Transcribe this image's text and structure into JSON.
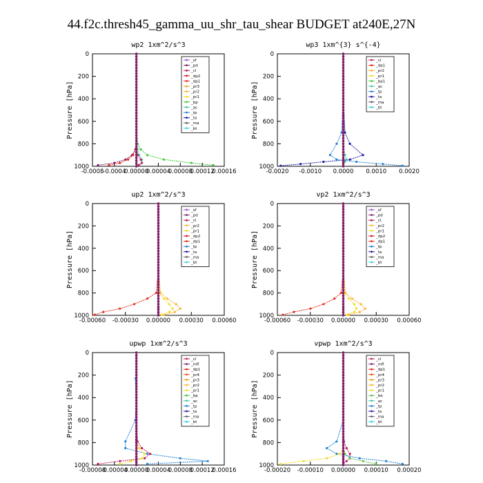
{
  "figure": {
    "title": "44.f2c.thresh45_gamma_uu_shr_tau_shear  BUDGET at240E,27N"
  },
  "colors": {
    "sf": "#9a4fd8",
    "pd": "#7a1f6a",
    "cl": "#c01a5a",
    "dp2": "#d01020",
    "dp1": "#e02a1a",
    "pr3": "#f0a010",
    "pr2": "#ffb030",
    "pr1": "#f2dc20",
    "bp": "#3cc83c",
    "ac": "#38c8a0",
    "tp": "#2080d0",
    "ta": "#1a1aa0",
    "ma": "#606060",
    "bt": "#30d0e0",
    "mfl": "#7a1f6a",
    "pr4": "#e05010",
    "bp1": "#3cc83c",
    "bp2": "#3cc83c",
    "be": "#5cc050"
  },
  "chart_data": [
    {
      "type": "line",
      "title": "wp2   1xm^2/s^3",
      "ylabel": "Pressure  [hPa]",
      "xlim": [
        -0.0008,
        0.0016
      ],
      "ylim": [
        1000,
        0
      ],
      "xticks": [
        "-0.0008",
        "-0.0004",
        "0.00000",
        "0.00004",
        "0.00008",
        "0.00012",
        "0.00016"
      ],
      "yticks": [
        "0",
        "200",
        "400",
        "600",
        "800",
        "1000"
      ],
      "legend": [
        "_sf",
        "_pd",
        "_cl",
        "_dp2",
        "_dp1",
        "_pr3",
        "_pr2",
        "_pr1",
        "_bp",
        "_ac",
        "_tp",
        "_ta",
        "_ma",
        "_bt"
      ],
      "series": [
        {
          "name": "_bp",
          "color": "bp",
          "x": [
            0,
            0,
            0,
            0,
            2e-05,
            8e-05,
            0.0002,
            0.0005,
            0.001,
            0.0014
          ],
          "y": [
            0,
            200,
            400,
            600,
            800,
            850,
            900,
            940,
            970,
            990
          ]
        },
        {
          "name": "_pd",
          "color": "pd",
          "x": [
            0,
            0,
            0,
            0,
            0,
            -2e-05,
            -8e-05,
            -0.0002,
            -0.0004,
            -0.0007
          ],
          "y": [
            0,
            200,
            400,
            600,
            800,
            850,
            900,
            940,
            970,
            990
          ]
        },
        {
          "name": "_dp1",
          "color": "dp1",
          "x": [
            0,
            0,
            0,
            0,
            0,
            -2e-05,
            -6e-05,
            -0.00015,
            -0.0003,
            -0.0005
          ],
          "y": [
            0,
            200,
            400,
            600,
            800,
            850,
            900,
            940,
            970,
            990
          ]
        },
        {
          "name": "_ac",
          "color": "ac",
          "x": [
            0,
            0,
            0,
            0,
            0,
            2e-05,
            5e-05,
            0.0001,
            0.0001,
            5e-05
          ],
          "y": [
            0,
            200,
            400,
            600,
            800,
            850,
            900,
            940,
            970,
            990
          ]
        },
        {
          "name": "_cl",
          "color": "cl",
          "x": [
            0,
            0,
            0,
            0,
            0,
            0,
            2e-05,
            8e-05,
            0.0001,
            4e-05
          ],
          "y": [
            0,
            200,
            400,
            600,
            800,
            850,
            900,
            940,
            970,
            990
          ]
        }
      ]
    },
    {
      "type": "line",
      "title": "wp3   1xm^{3} s^{-4}",
      "ylabel": "Pressure  [hPa]",
      "xlim": [
        -0.002,
        0.002
      ],
      "ylim": [
        1000,
        0
      ],
      "xticks": [
        "-0.0020",
        "-0.0010",
        "0.0000",
        "0.0010",
        "0.0020"
      ],
      "yticks": [
        "0",
        "200",
        "400",
        "600",
        "800",
        "1000"
      ],
      "legend": [
        "_cl",
        "_dp1",
        "_pr2",
        "_pr1",
        "_bp1",
        "_ac",
        "_tp",
        "_ta",
        "_ma",
        "_bt"
      ],
      "series": [
        {
          "name": "_ta",
          "color": "ta",
          "x": [
            0,
            0,
            0,
            5e-05,
            0.0002,
            0.0006,
            0.0002,
            -0.0006,
            -0.0013,
            -0.0019
          ],
          "y": [
            0,
            200,
            400,
            700,
            800,
            900,
            940,
            960,
            980,
            995
          ]
        },
        {
          "name": "_tp",
          "color": "tp",
          "x": [
            0,
            0,
            0,
            -5e-05,
            -0.0002,
            -0.0004,
            -0.0002,
            0.0004,
            0.0012,
            0.0018
          ],
          "y": [
            0,
            200,
            400,
            700,
            800,
            900,
            940,
            960,
            980,
            995
          ]
        },
        {
          "name": "_ac",
          "color": "ac",
          "x": [
            0,
            0,
            0,
            0,
            0,
            5e-05,
            0.0001,
            5e-05,
            0,
            0
          ],
          "y": [
            0,
            200,
            400,
            700,
            800,
            900,
            940,
            960,
            980,
            995
          ]
        },
        {
          "name": "_cl",
          "color": "cl",
          "x": [
            0,
            0,
            0,
            0,
            0,
            0,
            0,
            0,
            0,
            0
          ],
          "y": [
            0,
            200,
            400,
            700,
            800,
            900,
            940,
            960,
            980,
            995
          ]
        }
      ]
    },
    {
      "type": "line",
      "title": "up2   1xm^2/s^3",
      "ylabel": "Pressure  [hPa]",
      "xlim": [
        -0.0006,
        0.0006
      ],
      "ylim": [
        1000,
        0
      ],
      "xticks": [
        "-0.00060",
        "-0.00030",
        "0.00000",
        "0.00030",
        "0.00060"
      ],
      "yticks": [
        "0",
        "200",
        "400",
        "600",
        "800",
        "1000"
      ],
      "legend": [
        "_sf",
        "_pd",
        "_cl",
        "_pr2",
        "_pr1",
        "_dp2",
        "_dp1",
        "_tp",
        "_ta",
        "_ma",
        "_bt"
      ],
      "series": [
        {
          "name": "_dp1",
          "color": "dp1",
          "x": [
            0,
            0,
            0,
            0,
            -2e-05,
            -0.0001,
            -0.00022,
            -0.00035,
            -0.0005,
            -0.00058
          ],
          "y": [
            0,
            200,
            400,
            600,
            800,
            850,
            900,
            940,
            970,
            995
          ]
        },
        {
          "name": "_pr2",
          "color": "pr2",
          "x": [
            0,
            0,
            0,
            0,
            2e-05,
            8e-05,
            0.00016,
            0.0002,
            0.00015,
            5e-05
          ],
          "y": [
            0,
            200,
            400,
            600,
            800,
            850,
            900,
            940,
            970,
            995
          ]
        },
        {
          "name": "_pr1",
          "color": "pr1",
          "x": [
            0,
            0,
            0,
            0,
            1e-05,
            5e-05,
            0.0001,
            0.00013,
            0.0001,
            3e-05
          ],
          "y": [
            0,
            200,
            400,
            600,
            800,
            850,
            900,
            940,
            970,
            995
          ]
        },
        {
          "name": "_pd",
          "color": "pd",
          "x": [
            0,
            0,
            0,
            0,
            0,
            0,
            0,
            0,
            0,
            0
          ],
          "y": [
            0,
            200,
            400,
            600,
            800,
            850,
            900,
            940,
            970,
            995
          ]
        }
      ]
    },
    {
      "type": "line",
      "title": "vp2   1xm^2/s^3",
      "ylabel": "Pressure  [hPa]",
      "xlim": [
        -0.0006,
        0.0006
      ],
      "ylim": [
        1000,
        0
      ],
      "xticks": [
        "-0.00060",
        "-0.00030",
        "0.00000",
        "0.00030",
        "0.00060"
      ],
      "yticks": [
        "0",
        "200",
        "400",
        "600",
        "800",
        "1000"
      ],
      "legend": [
        "_sf",
        "_pd",
        "_cl",
        "_pr2",
        "_pr1",
        "_dp2",
        "_dp1",
        "_tp",
        "_ta",
        "_ma",
        "_bt"
      ],
      "series": [
        {
          "name": "_dp1",
          "color": "dp1",
          "x": [
            0,
            0,
            0,
            0,
            -2e-05,
            -8e-05,
            -0.00018,
            -0.0003,
            -0.00045,
            -0.00055
          ],
          "y": [
            0,
            200,
            400,
            600,
            800,
            850,
            900,
            940,
            970,
            995
          ]
        },
        {
          "name": "_pr2",
          "color": "pr2",
          "x": [
            0,
            0,
            0,
            0,
            2e-05,
            8e-05,
            0.00016,
            0.0002,
            0.00015,
            5e-05
          ],
          "y": [
            0,
            200,
            400,
            600,
            800,
            850,
            900,
            940,
            970,
            995
          ]
        },
        {
          "name": "_pr1",
          "color": "pr1",
          "x": [
            0,
            0,
            0,
            0,
            1e-05,
            5e-05,
            0.0001,
            0.00012,
            0.0001,
            3e-05
          ],
          "y": [
            0,
            200,
            400,
            600,
            800,
            850,
            900,
            940,
            970,
            995
          ]
        },
        {
          "name": "_pd",
          "color": "pd",
          "x": [
            0,
            0,
            0,
            0,
            0,
            0,
            0,
            0,
            0,
            0
          ],
          "y": [
            0,
            200,
            400,
            600,
            800,
            850,
            900,
            940,
            970,
            995
          ]
        }
      ]
    },
    {
      "type": "line",
      "title": "upwp   1xm^2/s^3",
      "ylabel": "Pressure  [hPa]",
      "xlim": [
        -8e-05,
        0.00016
      ],
      "ylim": [
        1000,
        0
      ],
      "xticks": [
        "-0.00008",
        "-0.00004",
        "0.00000",
        "0.00004",
        "0.00008",
        "0.00012",
        "0.00016"
      ],
      "yticks": [
        "0",
        "200",
        "400",
        "600",
        "800",
        "1000"
      ],
      "legend": [
        "_cl",
        "_mfl",
        "_dp1",
        "_pr4",
        "_pr3",
        "_pr2",
        "_pr1",
        "_bp",
        "_ac",
        "_tp",
        "_ta",
        "_ma",
        "_bt"
      ],
      "series": [
        {
          "name": "_tp",
          "color": "tp",
          "x": [
            0,
            0,
            0,
            -2e-06,
            -2e-05,
            -2e-05,
            2e-05,
            8e-05,
            0.00013,
            2e-05
          ],
          "y": [
            0,
            200,
            400,
            600,
            790,
            850,
            900,
            940,
            965,
            990
          ]
        },
        {
          "name": "_pr2",
          "color": "cl",
          "x": [
            0,
            0,
            0,
            0,
            2e-06,
            1e-05,
            2.5e-05,
            1.5e-05,
            -3e-05,
            -7e-05
          ],
          "y": [
            0,
            200,
            400,
            600,
            790,
            850,
            900,
            940,
            965,
            990
          ]
        },
        {
          "name": "_pr1",
          "color": "pr1",
          "x": [
            0,
            0,
            0,
            0,
            0,
            5e-06,
            1.5e-05,
            1e-05,
            -1e-05,
            -3e-05
          ],
          "y": [
            0,
            200,
            400,
            600,
            790,
            850,
            900,
            940,
            965,
            990
          ]
        },
        {
          "name": "_bt",
          "color": "bt",
          "x": [
            0,
            0,
            -2e-06,
            0,
            0,
            0,
            0,
            0,
            0,
            0
          ],
          "y": [
            0,
            200,
            230,
            600,
            790,
            850,
            900,
            940,
            965,
            990
          ]
        },
        {
          "name": "_cl",
          "color": "sf",
          "x": [
            0,
            0,
            0,
            0,
            0,
            0,
            0,
            0,
            0,
            0
          ],
          "y": [
            0,
            200,
            400,
            600,
            790,
            850,
            900,
            940,
            965,
            990
          ]
        }
      ]
    },
    {
      "type": "line",
      "title": "vpwp   1xm^2/s^3",
      "ylabel": "Pressure  [hPa]",
      "xlim": [
        -0.0002,
        0.0002
      ],
      "ylim": [
        1000,
        0
      ],
      "xticks": [
        "-0.00020",
        "-0.00010",
        "0.00000",
        "0.00010",
        "0.00020"
      ],
      "yticks": [
        "0",
        "200",
        "400",
        "600",
        "800",
        "1000"
      ],
      "legend": [
        "_cl",
        "_mfl",
        "_dp1",
        "_pr4",
        "_pr3",
        "_pr2",
        "_pr1",
        "_be",
        "_ac",
        "_tp",
        "_ta",
        "_ma",
        "_bt"
      ],
      "series": [
        {
          "name": "_tp",
          "color": "tp",
          "x": [
            0,
            0,
            0,
            0,
            -2e-05,
            -5e-05,
            -2e-05,
            5e-05,
            0.00013,
            0.00018
          ],
          "y": [
            0,
            200,
            400,
            600,
            790,
            850,
            900,
            940,
            965,
            990
          ]
        },
        {
          "name": "_pr2",
          "color": "pr1",
          "x": [
            0,
            0,
            0,
            0,
            0,
            0,
            -1e-05,
            -5e-05,
            -0.00012,
            -0.00019
          ],
          "y": [
            0,
            200,
            400,
            600,
            790,
            850,
            900,
            940,
            965,
            990
          ]
        },
        {
          "name": "_pr1",
          "color": "cl",
          "x": [
            0,
            0,
            0,
            0,
            2e-06,
            1e-05,
            2e-05,
            2e-05,
            1e-05,
            0
          ],
          "y": [
            0,
            200,
            400,
            600,
            790,
            850,
            900,
            940,
            965,
            990
          ]
        },
        {
          "name": "_be",
          "color": "be",
          "x": [
            0,
            0,
            0,
            0,
            0,
            0,
            5e-06,
            2e-05,
            6e-05,
            0.0001
          ],
          "y": [
            0,
            200,
            400,
            600,
            790,
            850,
            900,
            940,
            965,
            990
          ]
        },
        {
          "name": "_cl",
          "color": "sf",
          "x": [
            0,
            0,
            0,
            0,
            0,
            0,
            0,
            0,
            0,
            0
          ],
          "y": [
            0,
            200,
            400,
            600,
            790,
            850,
            900,
            940,
            965,
            990
          ]
        }
      ]
    }
  ]
}
